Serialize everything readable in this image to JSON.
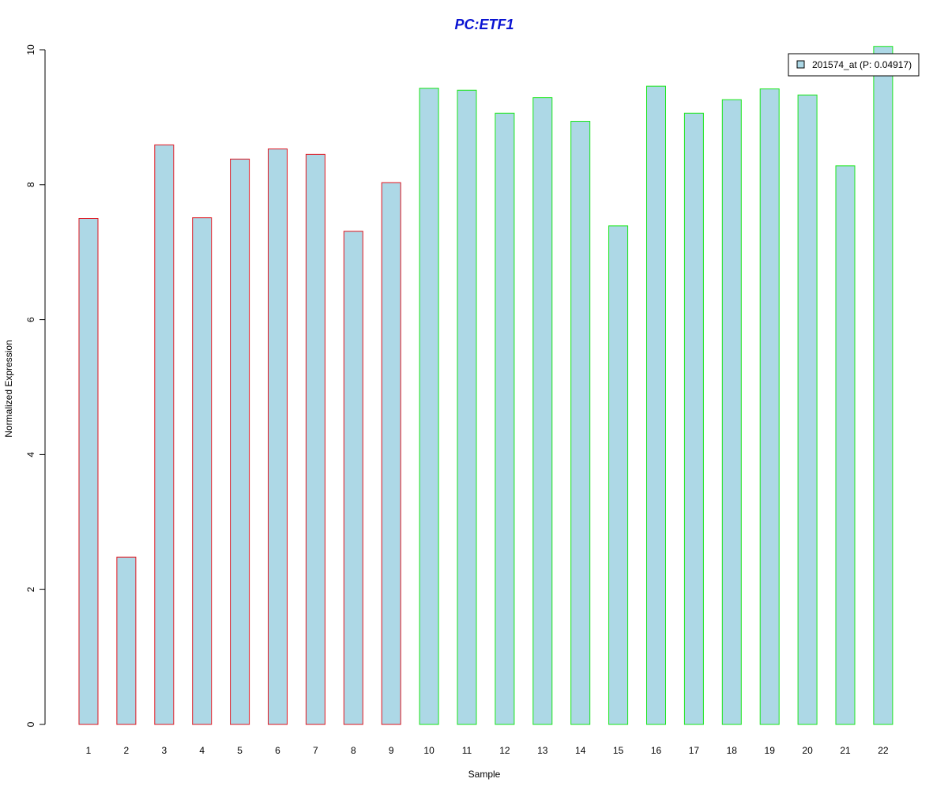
{
  "chart_data": {
    "type": "bar",
    "title": "PC:ETF1",
    "xlabel": "Sample",
    "ylabel": "Normalized Expression",
    "ylim": [
      0,
      10
    ],
    "yticks": [
      "0",
      "2",
      "4",
      "6",
      "8",
      "10"
    ],
    "categories": [
      "1",
      "2",
      "3",
      "4",
      "5",
      "6",
      "7",
      "8",
      "9",
      "10",
      "11",
      "12",
      "13",
      "14",
      "15",
      "16",
      "17",
      "18",
      "19",
      "20",
      "21",
      "22"
    ],
    "series": [
      {
        "name": "201574_at (P: 0.04917)",
        "values": [
          7.5,
          2.48,
          8.59,
          7.51,
          8.38,
          8.53,
          8.45,
          7.31,
          8.03,
          9.43,
          9.4,
          9.06,
          9.29,
          8.94,
          7.39,
          9.46,
          9.06,
          9.26,
          9.42,
          9.33,
          8.28,
          10.05
        ]
      }
    ],
    "groups": [
      {
        "samples": [
          "1",
          "2",
          "3",
          "4",
          "5",
          "6",
          "7",
          "8",
          "9"
        ],
        "border_color": "#e0141e"
      },
      {
        "samples": [
          "10",
          "11",
          "12",
          "13",
          "14",
          "15",
          "16",
          "17",
          "18",
          "19",
          "20",
          "21",
          "22"
        ],
        "border_color": "#19e619"
      }
    ],
    "bar_fill_color": "#add8e6",
    "title_color": "#0a14d2",
    "legend_position": "top-right",
    "grid": false
  }
}
